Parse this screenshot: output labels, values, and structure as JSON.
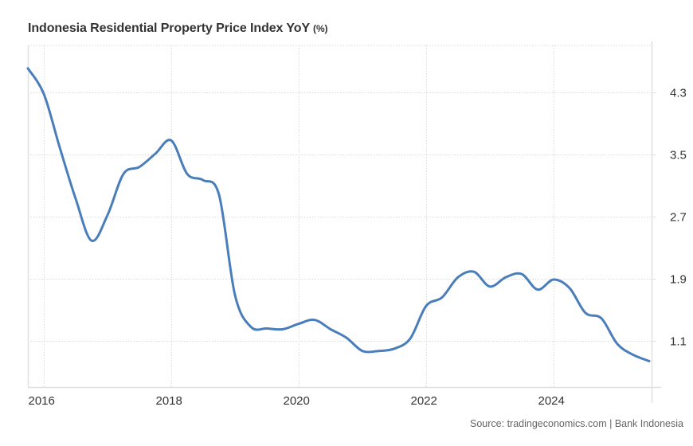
{
  "header": {
    "title": "Indonesia Residential Property Price Index YoY",
    "unit": "(%)"
  },
  "footer": {
    "source": "Source: tradingeconomics.com | Bank Indonesia"
  },
  "colors": {
    "line": "#4a7ebb",
    "grid": "#d9d9d9",
    "axis": "#e0e0e0",
    "text": "#333333"
  },
  "chart_data": {
    "type": "line",
    "title": "Indonesia Residential Property Price Index YoY (%)",
    "xlabel": "",
    "ylabel": "",
    "xlim": [
      2015.75,
      2025.5
    ],
    "ylim": [
      0.8,
      5.0
    ],
    "x_ticks": [
      2016,
      2018,
      2020,
      2022,
      2024
    ],
    "x_tick_labels": [
      "2016",
      "2018",
      "2020",
      "2022",
      "2024"
    ],
    "y_ticks": [
      1.1,
      1.9,
      2.7,
      3.5,
      4.3
    ],
    "y_tick_labels": [
      "1.1",
      "1.9",
      "2.7",
      "3.5",
      "4.3"
    ],
    "y_axis_position": "right",
    "grid": true,
    "legend": "none",
    "series": [
      {
        "name": "Residential Property Price Index YoY",
        "x": [
          "2015Q3",
          "2015Q4",
          "2016Q1",
          "2016Q2",
          "2016Q3",
          "2016Q4",
          "2017Q1",
          "2017Q2",
          "2017Q3",
          "2017Q4",
          "2018Q1",
          "2018Q2",
          "2018Q3",
          "2018Q4",
          "2019Q1",
          "2019Q2",
          "2019Q3",
          "2019Q4",
          "2020Q1",
          "2020Q2",
          "2020Q3",
          "2020Q4",
          "2021Q1",
          "2021Q2",
          "2021Q3",
          "2021Q4",
          "2022Q1",
          "2022Q2",
          "2022Q3",
          "2022Q4",
          "2023Q1",
          "2023Q2",
          "2023Q3",
          "2023Q4",
          "2024Q1",
          "2024Q2",
          "2024Q3",
          "2024Q4",
          "2025Q1",
          "2025Q2"
        ],
        "t": [
          2015.75,
          2016.0,
          2016.25,
          2016.5,
          2016.75,
          2017.0,
          2017.25,
          2017.5,
          2017.75,
          2018.0,
          2018.25,
          2018.5,
          2018.75,
          2019.0,
          2019.25,
          2019.5,
          2019.75,
          2020.0,
          2020.25,
          2020.5,
          2020.75,
          2021.0,
          2021.25,
          2021.5,
          2021.75,
          2022.0,
          2022.25,
          2022.5,
          2022.75,
          2023.0,
          2023.25,
          2023.5,
          2023.75,
          2024.0,
          2024.25,
          2024.5,
          2024.75,
          2025.0,
          2025.25,
          2025.5
        ],
        "values": [
          4.61,
          4.28,
          3.59,
          2.93,
          2.39,
          2.72,
          3.25,
          3.34,
          3.51,
          3.68,
          3.25,
          3.17,
          2.98,
          1.69,
          1.28,
          1.26,
          1.25,
          1.32,
          1.37,
          1.25,
          1.14,
          0.97,
          0.97,
          1.0,
          1.13,
          1.55,
          1.66,
          1.92,
          1.99,
          1.8,
          1.92,
          1.96,
          1.76,
          1.89,
          1.78,
          1.46,
          1.39,
          1.06,
          0.92,
          0.84
        ]
      }
    ]
  }
}
